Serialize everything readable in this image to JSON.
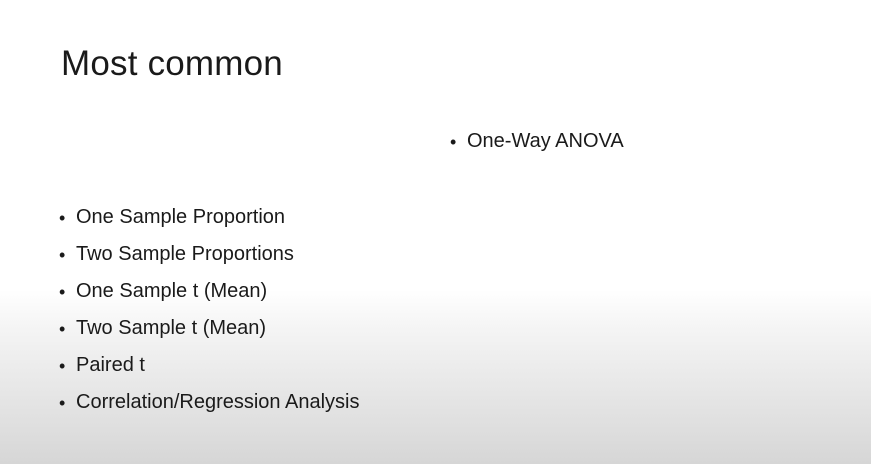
{
  "slide": {
    "title": "Most common",
    "right_items": [
      {
        "label": "One-Way ANOVA"
      }
    ],
    "left_items": [
      {
        "label": "One Sample Proportion"
      },
      {
        "label": "Two Sample Proportions"
      },
      {
        "label": "One Sample t (Mean)"
      },
      {
        "label": "Two Sample t (Mean)"
      },
      {
        "label": "Paired t"
      },
      {
        "label": "Correlation/Regression Analysis"
      }
    ],
    "bullet_glyph": "•"
  }
}
